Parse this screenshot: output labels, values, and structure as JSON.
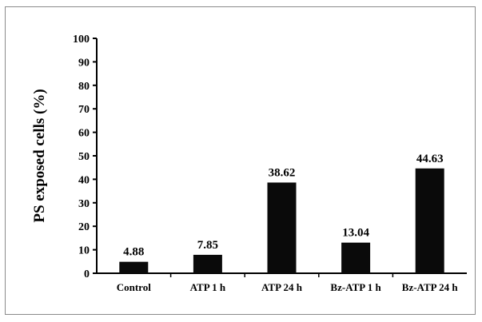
{
  "chart_data": {
    "type": "bar",
    "categories": [
      "Control",
      "ATP 1 h",
      "ATP 24 h",
      "Bz-ATP 1 h",
      "Bz-ATP 24 h"
    ],
    "values": [
      4.88,
      7.85,
      38.62,
      13.04,
      44.63
    ],
    "data_labels": [
      "4.88",
      "7.85",
      "38.62",
      "13.04",
      "44.63"
    ],
    "title": "",
    "xlabel": "",
    "ylabel": "PS exposed cells (%)",
    "ylim": [
      0,
      100
    ],
    "yticks": [
      0,
      10,
      20,
      30,
      40,
      50,
      60,
      70,
      80,
      90,
      100
    ],
    "grid": false,
    "legend": "none",
    "bar_color": "#0a0a0a"
  }
}
